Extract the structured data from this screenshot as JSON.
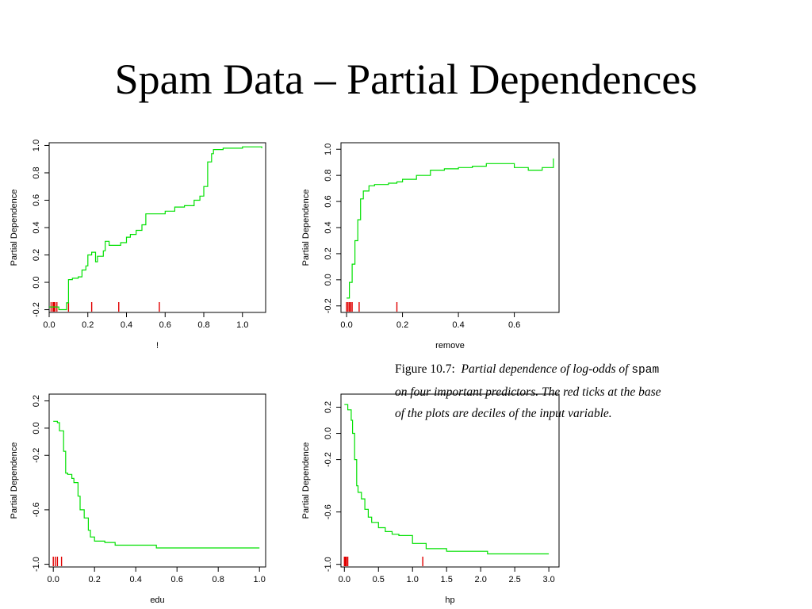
{
  "title": "Spam Data – Partial Dependences",
  "caption": {
    "label": "Figure 10.7:",
    "line1": "Partial dependence of log-odds of",
    "keyword": "spam",
    "line2": "on four important predictors. The red ticks at the base",
    "line3": "of the plots are deciles of the input variable."
  },
  "colors": {
    "curve": "#00e000",
    "rug": "#e00000",
    "axis": "#000000"
  },
  "chart_data": [
    {
      "type": "line",
      "xlabel": "!",
      "ylabel": "Partial Dependence",
      "xlim": [
        0.0,
        1.12
      ],
      "ylim": [
        -0.22,
        1.02
      ],
      "xticks": [
        0.0,
        0.2,
        0.4,
        0.6,
        0.8,
        1.0
      ],
      "xtick_labels": [
        "0.0",
        "0.2",
        "0.4",
        "0.6",
        "0.8",
        "1.0"
      ],
      "yticks": [
        -0.2,
        0.0,
        0.2,
        0.4,
        0.6,
        0.8,
        1.0
      ],
      "ytick_labels": [
        "-0.2",
        "0.0",
        "0.2",
        "0.4",
        "0.6",
        "0.8",
        "1.0"
      ],
      "x": [
        0.0,
        0.04,
        0.05,
        0.08,
        0.09,
        0.1,
        0.12,
        0.15,
        0.17,
        0.19,
        0.2,
        0.22,
        0.24,
        0.25,
        0.28,
        0.29,
        0.31,
        0.34,
        0.37,
        0.4,
        0.42,
        0.45,
        0.48,
        0.5,
        0.55,
        0.6,
        0.65,
        0.7,
        0.75,
        0.78,
        0.8,
        0.82,
        0.84,
        0.85,
        0.88,
        0.9,
        0.95,
        1.0,
        1.05,
        1.1
      ],
      "y": [
        -0.18,
        -0.18,
        -0.2,
        -0.2,
        -0.15,
        0.02,
        0.03,
        0.04,
        0.09,
        0.12,
        0.2,
        0.22,
        0.15,
        0.19,
        0.23,
        0.3,
        0.27,
        0.27,
        0.29,
        0.33,
        0.35,
        0.38,
        0.42,
        0.5,
        0.5,
        0.52,
        0.55,
        0.56,
        0.6,
        0.63,
        0.7,
        0.88,
        0.94,
        0.97,
        0.97,
        0.98,
        0.98,
        0.99,
        0.99,
        0.98
      ],
      "rug": [
        0.01,
        0.02,
        0.025,
        0.03,
        0.04,
        0.1,
        0.22,
        0.36,
        0.57
      ]
    },
    {
      "type": "line",
      "xlabel": "remove",
      "ylabel": "Partial Dependence",
      "xlim": [
        -0.02,
        0.76
      ],
      "ylim": [
        -0.25,
        1.05
      ],
      "xticks": [
        0.0,
        0.2,
        0.4,
        0.6
      ],
      "xtick_labels": [
        "0.0",
        "0.2",
        "0.4",
        "0.6"
      ],
      "yticks": [
        -0.2,
        0.0,
        0.2,
        0.4,
        0.6,
        0.8,
        1.0
      ],
      "ytick_labels": [
        "-0.2",
        "0.0",
        "0.2",
        "0.4",
        "0.6",
        "0.8",
        "1.0"
      ],
      "x": [
        0.0,
        0.01,
        0.02,
        0.03,
        0.04,
        0.05,
        0.06,
        0.08,
        0.1,
        0.15,
        0.18,
        0.2,
        0.25,
        0.3,
        0.35,
        0.4,
        0.45,
        0.5,
        0.55,
        0.6,
        0.65,
        0.7,
        0.74
      ],
      "y": [
        -0.14,
        -0.02,
        0.12,
        0.3,
        0.46,
        0.62,
        0.68,
        0.72,
        0.73,
        0.74,
        0.75,
        0.77,
        0.8,
        0.84,
        0.85,
        0.86,
        0.87,
        0.89,
        0.89,
        0.86,
        0.84,
        0.86,
        0.93
      ],
      "rug": [
        0.0,
        0.005,
        0.01,
        0.015,
        0.02,
        0.045,
        0.18
      ]
    },
    {
      "type": "line",
      "xlabel": "edu",
      "ylabel": "Partial Dependence",
      "xlim": [
        -0.02,
        1.03
      ],
      "ylim": [
        -1.02,
        0.25
      ],
      "xticks": [
        0.0,
        0.2,
        0.4,
        0.6,
        0.8,
        1.0
      ],
      "xtick_labels": [
        "0.0",
        "0.2",
        "0.4",
        "0.6",
        "0.8",
        "1.0"
      ],
      "yticks": [
        -1.0,
        -0.6,
        -0.2,
        0.0,
        0.2
      ],
      "ytick_labels": [
        "-1.0",
        "-0.6",
        "-0.2",
        "0.0",
        "0.2"
      ],
      "x": [
        0.0,
        0.02,
        0.03,
        0.05,
        0.06,
        0.07,
        0.09,
        0.1,
        0.12,
        0.13,
        0.15,
        0.17,
        0.18,
        0.2,
        0.25,
        0.3,
        0.35,
        0.4,
        0.5,
        0.6,
        0.8,
        1.0
      ],
      "y": [
        0.05,
        0.04,
        -0.02,
        -0.17,
        -0.33,
        -0.34,
        -0.37,
        -0.4,
        -0.5,
        -0.6,
        -0.66,
        -0.75,
        -0.8,
        -0.83,
        -0.84,
        -0.86,
        -0.86,
        -0.86,
        -0.88,
        -0.88,
        -0.88,
        -0.88
      ],
      "rug": [
        0.0,
        0.01,
        0.02,
        0.04
      ]
    },
    {
      "type": "line",
      "xlabel": "hp",
      "ylabel": "Partial Dependence",
      "xlim": [
        -0.05,
        3.15
      ],
      "ylim": [
        -1.02,
        0.3
      ],
      "xticks": [
        0.0,
        0.5,
        1.0,
        1.5,
        2.0,
        2.5,
        3.0
      ],
      "xtick_labels": [
        "0.0",
        "0.5",
        "1.0",
        "1.5",
        "2.0",
        "2.5",
        "3.0"
      ],
      "yticks": [
        -1.0,
        -0.6,
        -0.2,
        0.0,
        0.2
      ],
      "ytick_labels": [
        "-1.0",
        "-0.6",
        "-0.2",
        "0.0",
        "0.2"
      ],
      "x": [
        0.0,
        0.05,
        0.1,
        0.12,
        0.15,
        0.18,
        0.2,
        0.25,
        0.3,
        0.35,
        0.4,
        0.5,
        0.6,
        0.7,
        0.8,
        1.0,
        1.2,
        1.5,
        1.8,
        2.0,
        2.1,
        2.5,
        3.0
      ],
      "y": [
        0.22,
        0.18,
        0.1,
        0.0,
        -0.2,
        -0.4,
        -0.45,
        -0.5,
        -0.58,
        -0.64,
        -0.68,
        -0.72,
        -0.75,
        -0.77,
        -0.78,
        -0.84,
        -0.88,
        -0.9,
        -0.9,
        -0.9,
        -0.92,
        -0.92,
        -0.92
      ],
      "rug": [
        0.0,
        0.01,
        0.02,
        0.03,
        0.05,
        1.15
      ]
    }
  ]
}
